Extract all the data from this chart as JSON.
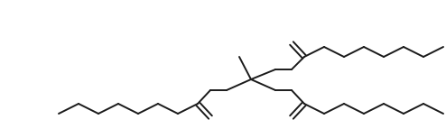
{
  "bg_color": "#ffffff",
  "line_color": "#1a1a1a",
  "line_width": 1.4,
  "fig_width": 4.94,
  "fig_height": 1.53,
  "dpi": 100
}
